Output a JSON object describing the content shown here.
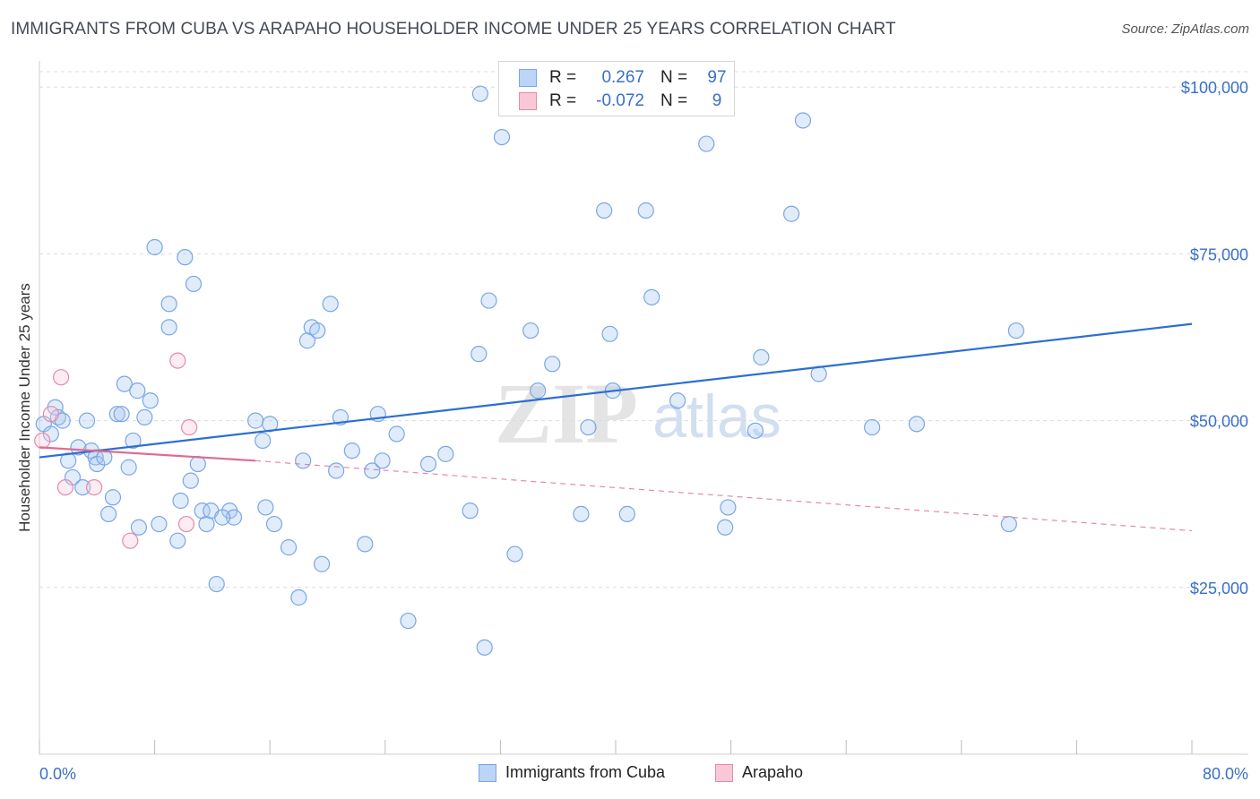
{
  "title": "IMMIGRANTS FROM CUBA VS ARAPAHO HOUSEHOLDER INCOME UNDER 25 YEARS CORRELATION CHART",
  "source": "Source: ZipAtlas.com",
  "watermark": {
    "zip": "ZIP",
    "atlas": "atlas"
  },
  "legend": {
    "rows": [
      {
        "r_label": "R =",
        "r_value": "0.267",
        "n_label": "N =",
        "n_value": "97",
        "color": "#bcd4f5",
        "border": "#7aa6e6"
      },
      {
        "r_label": "R =",
        "r_value": "-0.072",
        "n_label": "N =",
        "n_value": "9",
        "color": "#f9c8d6",
        "border": "#e88aa6"
      }
    ]
  },
  "bottom_legend": [
    {
      "label": "Immigrants from Cuba",
      "color": "#bcd4f5",
      "border": "#7aa6e6"
    },
    {
      "label": "Arapaho",
      "color": "#f9c8d6",
      "border": "#e88aa6"
    }
  ],
  "chart_data": {
    "type": "scatter",
    "xlabel": "",
    "ylabel": "Householder Income Under 25 years",
    "xlim": [
      0,
      80
    ],
    "ylim": [
      0,
      105000
    ],
    "x_tick_labels": {
      "left": "0.0%",
      "right": "80.0%"
    },
    "y_ticks": [
      {
        "value": 25000,
        "label": "$25,000"
      },
      {
        "value": 50000,
        "label": "$50,000"
      },
      {
        "value": 75000,
        "label": "$75,000"
      },
      {
        "value": 100000,
        "label": "$100,000"
      }
    ],
    "series": [
      {
        "name": "Immigrants from Cuba",
        "color": "#7aa6e6",
        "fill": "rgba(170,200,240,0.35)",
        "trend": {
          "x0": 0,
          "y0": 44500,
          "x1": 80,
          "y1": 64500,
          "color": "#2c6fd1"
        },
        "points": [
          [
            0.3,
            49500
          ],
          [
            0.8,
            48000
          ],
          [
            1.1,
            52000
          ],
          [
            1.3,
            50500
          ],
          [
            1.6,
            50000
          ],
          [
            2.0,
            44000
          ],
          [
            2.3,
            41500
          ],
          [
            2.7,
            46000
          ],
          [
            3.0,
            40000
          ],
          [
            3.3,
            50000
          ],
          [
            3.6,
            45500
          ],
          [
            3.9,
            44500
          ],
          [
            4.0,
            43500
          ],
          [
            4.5,
            44500
          ],
          [
            4.8,
            36000
          ],
          [
            5.1,
            38500
          ],
          [
            5.4,
            51000
          ],
          [
            5.7,
            51000
          ],
          [
            5.9,
            55500
          ],
          [
            6.2,
            43000
          ],
          [
            6.5,
            47000
          ],
          [
            6.8,
            54500
          ],
          [
            7.3,
            50500
          ],
          [
            7.7,
            53000
          ],
          [
            8.0,
            76000
          ],
          [
            8.3,
            34500
          ],
          [
            9.0,
            67500
          ],
          [
            9.0,
            64000
          ],
          [
            9.6,
            32000
          ],
          [
            9.8,
            38000
          ],
          [
            10.1,
            74500
          ],
          [
            10.5,
            41000
          ],
          [
            10.7,
            70500
          ],
          [
            11.0,
            43500
          ],
          [
            11.3,
            36500
          ],
          [
            11.6,
            34500
          ],
          [
            11.9,
            36500
          ],
          [
            12.3,
            25500
          ],
          [
            13.2,
            36500
          ],
          [
            13.5,
            35500
          ],
          [
            15.0,
            50000
          ],
          [
            15.5,
            47000
          ],
          [
            15.7,
            37000
          ],
          [
            16.0,
            49500
          ],
          [
            16.3,
            34500
          ],
          [
            17.3,
            31000
          ],
          [
            18.0,
            23500
          ],
          [
            18.3,
            44000
          ],
          [
            18.6,
            62000
          ],
          [
            18.9,
            64000
          ],
          [
            19.3,
            63500
          ],
          [
            19.6,
            28500
          ],
          [
            20.2,
            67500
          ],
          [
            20.6,
            42500
          ],
          [
            20.9,
            50500
          ],
          [
            21.7,
            45500
          ],
          [
            22.6,
            31500
          ],
          [
            23.1,
            42500
          ],
          [
            23.5,
            51000
          ],
          [
            23.8,
            44000
          ],
          [
            24.8,
            48000
          ],
          [
            25.6,
            20000
          ],
          [
            27.0,
            43500
          ],
          [
            28.2,
            45000
          ],
          [
            29.9,
            36500
          ],
          [
            30.5,
            60000
          ],
          [
            30.9,
            16000
          ],
          [
            31.2,
            68000
          ],
          [
            32.1,
            92500
          ],
          [
            33.0,
            30000
          ],
          [
            34.1,
            63500
          ],
          [
            34.6,
            54500
          ],
          [
            35.6,
            58500
          ],
          [
            37.6,
            36000
          ],
          [
            38.1,
            49000
          ],
          [
            39.2,
            81500
          ],
          [
            39.6,
            63000
          ],
          [
            39.8,
            54500
          ],
          [
            40.8,
            36000
          ],
          [
            42.1,
            81500
          ],
          [
            42.5,
            68500
          ],
          [
            44.3,
            53000
          ],
          [
            46.3,
            91500
          ],
          [
            47.6,
            34000
          ],
          [
            47.8,
            37000
          ],
          [
            49.7,
            48500
          ],
          [
            50.1,
            59500
          ],
          [
            52.2,
            81000
          ],
          [
            53.0,
            95000
          ],
          [
            54.1,
            57000
          ],
          [
            57.8,
            49000
          ],
          [
            60.9,
            49500
          ],
          [
            67.3,
            34500
          ],
          [
            67.8,
            63500
          ],
          [
            30.6,
            99000
          ],
          [
            6.9,
            34000
          ],
          [
            12.7,
            35500
          ]
        ]
      },
      {
        "name": "Arapaho",
        "color": "#e88aa6",
        "fill": "rgba(249,200,214,0.35)",
        "trend": {
          "x0": 0,
          "y0": 46000,
          "x1": 15,
          "y1": 44000,
          "dash_x1": 80,
          "dash_y1": 33500,
          "color": "#e06b92"
        },
        "points": [
          [
            0.2,
            47000
          ],
          [
            0.8,
            51000
          ],
          [
            1.5,
            56500
          ],
          [
            1.8,
            40000
          ],
          [
            3.8,
            40000
          ],
          [
            6.3,
            32000
          ],
          [
            9.6,
            59000
          ],
          [
            10.4,
            49000
          ],
          [
            10.2,
            34500
          ]
        ]
      }
    ]
  }
}
